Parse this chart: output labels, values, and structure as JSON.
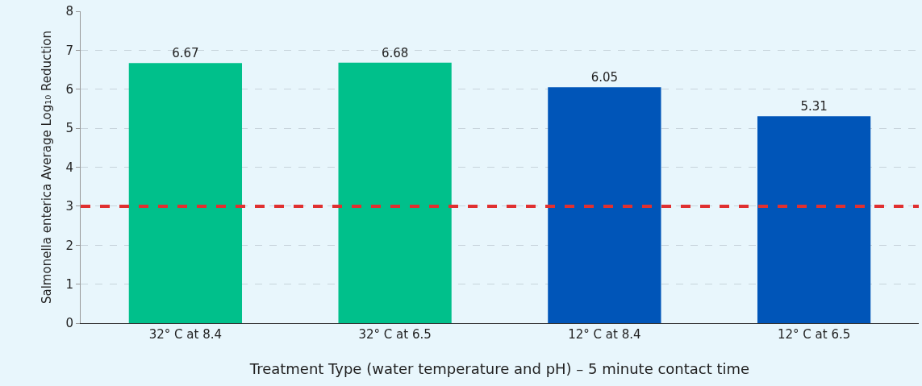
{
  "chart_data": {
    "type": "bar",
    "categories": [
      "32° C at 8.4",
      "32° C at 6.5",
      "12° C at 8.4",
      "12° C at 6.5"
    ],
    "values": [
      6.67,
      6.68,
      6.05,
      5.31
    ],
    "colors": [
      "#00c08b",
      "#00c08b",
      "#0055b8",
      "#0055b8"
    ],
    "data_labels": true,
    "xlabel": "Treatment Type (water temperature and pH) – 5 minute contact time",
    "ylabel": "Salmonella enterica Average Log₁₀ Reduction",
    "ylim": [
      0,
      8
    ],
    "yticks": [
      0,
      1,
      2,
      3,
      4,
      5,
      6,
      7,
      8
    ],
    "grid": "y",
    "ref_lines": [
      {
        "axis": "y",
        "value": 3,
        "color": "#e03030",
        "line_style": "dashed"
      }
    ]
  }
}
